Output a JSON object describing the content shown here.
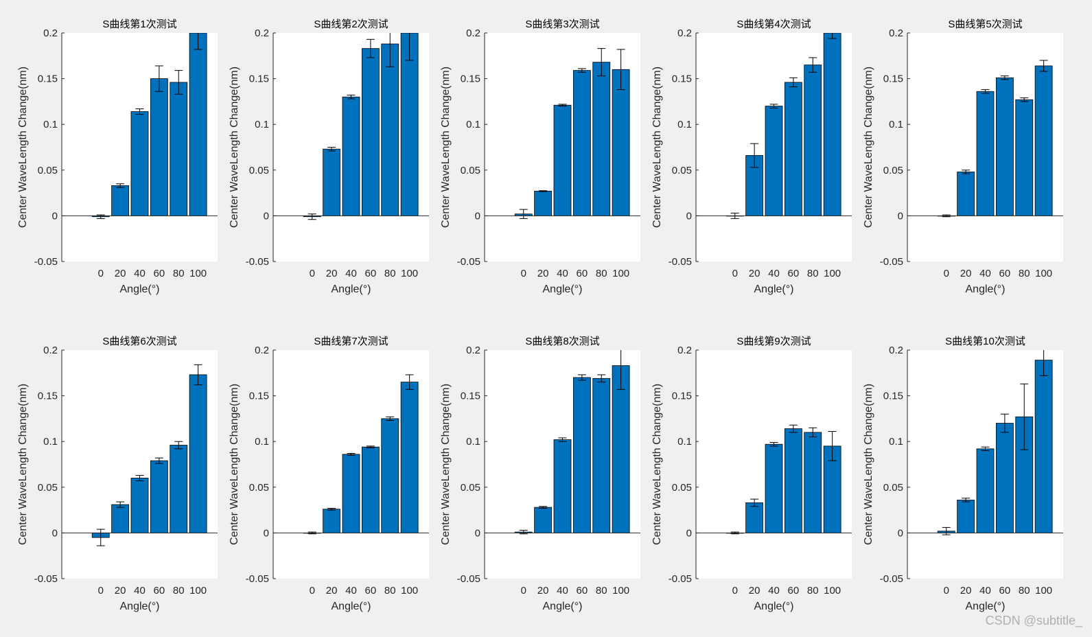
{
  "watermark": "CSDN @subtitle_",
  "colors": {
    "bar": "#0072BD",
    "figure_bg": "#f0f0f0",
    "axes_bg": "#ffffff",
    "ink": "#262626"
  },
  "chart_data": [
    {
      "type": "bar",
      "title": "S曲线第1次测试",
      "xlabel": "Angle(°)",
      "ylabel": "Center WaveLength Change(nm)",
      "categories": [
        "0",
        "20",
        "40",
        "60",
        "80",
        "100"
      ],
      "values": [
        -0.001,
        0.033,
        0.114,
        0.15,
        0.146,
        0.2
      ],
      "errors": [
        0.002,
        0.002,
        0.003,
        0.014,
        0.013,
        0.018
      ],
      "ylim": [
        -0.05,
        0.2
      ],
      "yticks": [
        "-0.05",
        "0",
        "0.05",
        "0.1",
        "0.15",
        "0.2"
      ]
    },
    {
      "type": "bar",
      "title": "S曲线第2次测试",
      "xlabel": "Angle(°)",
      "ylabel": "Center WaveLength Change(nm)",
      "categories": [
        "0",
        "20",
        "40",
        "60",
        "80",
        "100"
      ],
      "values": [
        -0.001,
        0.073,
        0.13,
        0.183,
        0.188,
        0.2
      ],
      "errors": [
        0.003,
        0.002,
        0.002,
        0.01,
        0.025,
        0.03
      ],
      "ylim": [
        -0.05,
        0.2
      ],
      "yticks": [
        "-0.05",
        "0",
        "0.05",
        "0.1",
        "0.15",
        "0.2"
      ]
    },
    {
      "type": "bar",
      "title": "S曲线第3次测试",
      "xlabel": "Angle(°)",
      "ylabel": "Center WaveLength Change(nm)",
      "categories": [
        "0",
        "20",
        "40",
        "60",
        "80",
        "100"
      ],
      "values": [
        0.002,
        0.027,
        0.121,
        0.159,
        0.168,
        0.16
      ],
      "errors": [
        0.005,
        0.0005,
        0.001,
        0.002,
        0.015,
        0.022
      ],
      "ylim": [
        -0.05,
        0.2
      ],
      "yticks": [
        "-0.05",
        "0",
        "0.05",
        "0.1",
        "0.15",
        "0.2"
      ]
    },
    {
      "type": "bar",
      "title": "S曲线第4次测试",
      "xlabel": "Angle(°)",
      "ylabel": "Center WaveLength Change(nm)",
      "categories": [
        "0",
        "20",
        "40",
        "60",
        "80",
        "100"
      ],
      "values": [
        0.0,
        0.066,
        0.12,
        0.146,
        0.165,
        0.2
      ],
      "errors": [
        0.003,
        0.013,
        0.002,
        0.005,
        0.008,
        0.006
      ],
      "ylim": [
        -0.05,
        0.2
      ],
      "yticks": [
        "-0.05",
        "0",
        "0.05",
        "0.1",
        "0.15",
        "0.2"
      ]
    },
    {
      "type": "bar",
      "title": "S曲线第5次测试",
      "xlabel": "Angle(°)",
      "ylabel": "Center WaveLength Change(nm)",
      "categories": [
        "0",
        "20",
        "40",
        "60",
        "80",
        "100"
      ],
      "values": [
        0.0,
        0.048,
        0.136,
        0.151,
        0.127,
        0.164
      ],
      "errors": [
        0.001,
        0.002,
        0.002,
        0.002,
        0.002,
        0.006
      ],
      "ylim": [
        -0.05,
        0.2
      ],
      "yticks": [
        "-0.05",
        "0",
        "0.05",
        "0.1",
        "0.15",
        "0.2"
      ]
    },
    {
      "type": "bar",
      "title": "S曲线第6次测试",
      "xlabel": "Angle(°)",
      "ylabel": "Center WaveLength Change(nm)",
      "categories": [
        "0",
        "20",
        "40",
        "60",
        "80",
        "100"
      ],
      "values": [
        -0.005,
        0.031,
        0.06,
        0.079,
        0.096,
        0.173
      ],
      "errors": [
        0.009,
        0.003,
        0.003,
        0.003,
        0.004,
        0.011
      ],
      "ylim": [
        -0.05,
        0.2
      ],
      "yticks": [
        "-0.05",
        "0",
        "0.05",
        "0.1",
        "0.15",
        "0.2"
      ]
    },
    {
      "type": "bar",
      "title": "S曲线第7次测试",
      "xlabel": "Angle(°)",
      "ylabel": "Center WaveLength Change(nm)",
      "categories": [
        "0",
        "20",
        "40",
        "60",
        "80",
        "100"
      ],
      "values": [
        0.0,
        0.026,
        0.086,
        0.094,
        0.125,
        0.165
      ],
      "errors": [
        0.001,
        0.001,
        0.001,
        0.001,
        0.002,
        0.008
      ],
      "ylim": [
        -0.05,
        0.2
      ],
      "yticks": [
        "-0.05",
        "0",
        "0.05",
        "0.1",
        "0.15",
        "0.2"
      ]
    },
    {
      "type": "bar",
      "title": "S曲线第8次测试",
      "xlabel": "Angle(°)",
      "ylabel": "Center WaveLength Change(nm)",
      "categories": [
        "0",
        "20",
        "40",
        "60",
        "80",
        "100"
      ],
      "values": [
        0.001,
        0.028,
        0.102,
        0.17,
        0.169,
        0.183
      ],
      "errors": [
        0.002,
        0.001,
        0.002,
        0.003,
        0.004,
        0.026
      ],
      "ylim": [
        -0.05,
        0.2
      ],
      "yticks": [
        "-0.05",
        "0",
        "0.05",
        "0.1",
        "0.15",
        "0.2"
      ]
    },
    {
      "type": "bar",
      "title": "S曲线第9次测试",
      "xlabel": "Angle(°)",
      "ylabel": "Center WaveLength Change(nm)",
      "categories": [
        "0",
        "20",
        "40",
        "60",
        "80",
        "100"
      ],
      "values": [
        0.0,
        0.033,
        0.097,
        0.114,
        0.11,
        0.095
      ],
      "errors": [
        0.001,
        0.004,
        0.002,
        0.004,
        0.005,
        0.016
      ],
      "ylim": [
        -0.05,
        0.2
      ],
      "yticks": [
        "-0.05",
        "0",
        "0.05",
        "0.1",
        "0.15",
        "0.2"
      ]
    },
    {
      "type": "bar",
      "title": "S曲线第10次测试",
      "xlabel": "Angle(°)",
      "ylabel": "Center WaveLength Change(nm)",
      "categories": [
        "0",
        "20",
        "40",
        "60",
        "80",
        "100"
      ],
      "values": [
        0.002,
        0.036,
        0.092,
        0.12,
        0.127,
        0.189
      ],
      "errors": [
        0.004,
        0.002,
        0.002,
        0.01,
        0.036,
        0.017
      ],
      "ylim": [
        -0.05,
        0.2
      ],
      "yticks": [
        "-0.05",
        "0",
        "0.05",
        "0.1",
        "0.15",
        "0.2"
      ]
    }
  ]
}
